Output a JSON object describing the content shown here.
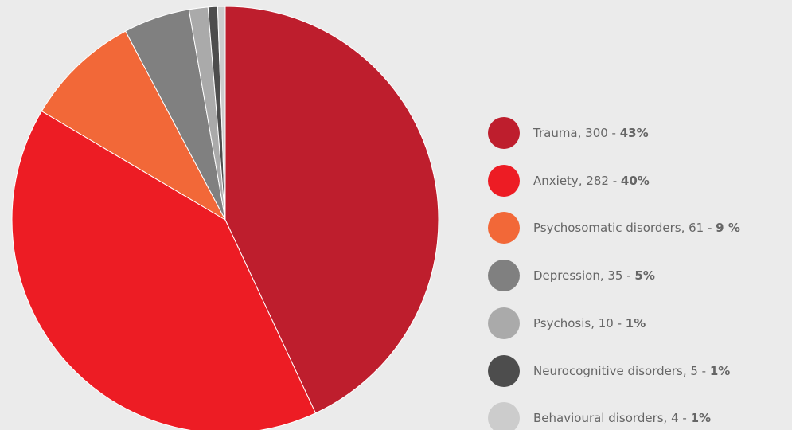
{
  "chart_data": {
    "type": "pie",
    "categories": [
      "Trauma, 300 - ",
      "Anxiety, 282 - ",
      "Psychosomatic disorders, 61 - ",
      "Depression, 35 - ",
      "Psychosis, 10 - ",
      "Neurocognitive disorders, 5 - ",
      "Behavioural disorders, 4 - "
    ],
    "values": [
      300,
      282,
      61,
      35,
      10,
      5,
      4
    ],
    "shares": [
      {
        "value": 43,
        "label": "43%"
      },
      {
        "value": 40,
        "label": "40%"
      },
      {
        "value": 9,
        "label": "9 %"
      },
      {
        "value": 5,
        "label": "5%"
      },
      {
        "value": 1,
        "label": "1%"
      },
      {
        "value": 1,
        "label": "1%"
      },
      {
        "value": 1,
        "label": "1%"
      }
    ],
    "colors": [
      "#be1e2d",
      "#ed1c24",
      "#f26838",
      "#808080",
      "#aaaaaa",
      "#4d4d4d",
      "#cccccc"
    ],
    "legend": "right"
  }
}
